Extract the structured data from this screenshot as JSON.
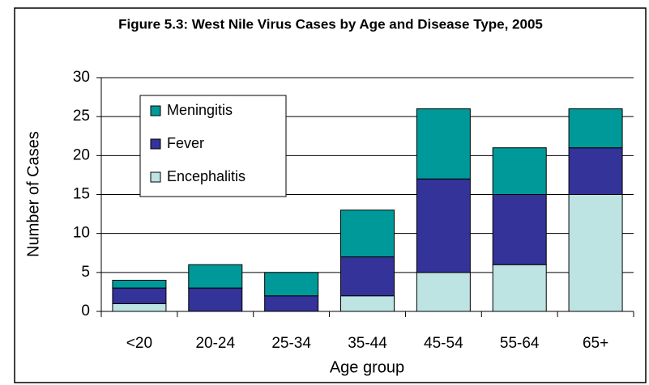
{
  "chart_data": {
    "type": "stacked_bar",
    "title": "Figure 5.3: West Nile Virus Cases by Age and Disease Type, 2005",
    "x_label": "Age group",
    "y_label": "Number of Cases",
    "categories": [
      "<20",
      "20-24",
      "25-34",
      "35-44",
      "45-54",
      "55-64",
      "65+"
    ],
    "series": [
      {
        "name": "Encephalitis",
        "color": "#bde3e3",
        "values": [
          1,
          0,
          0,
          2,
          5,
          6,
          15
        ]
      },
      {
        "name": "Fever",
        "color": "#333399",
        "values": [
          2,
          3,
          2,
          5,
          12,
          9,
          6
        ]
      },
      {
        "name": "Meningitis",
        "color": "#009999",
        "values": [
          1,
          3,
          3,
          6,
          9,
          6,
          5
        ]
      }
    ],
    "ylim": [
      0,
      30
    ],
    "yticks": [
      0,
      5,
      10,
      15,
      20,
      25,
      30
    ],
    "grid": true,
    "legend": "upper left"
  }
}
